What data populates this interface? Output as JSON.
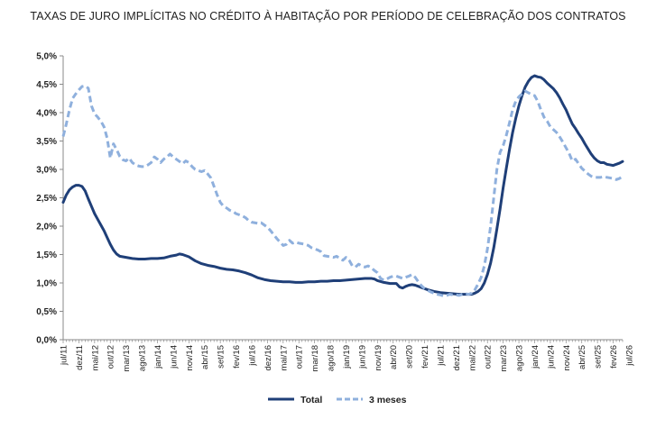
{
  "chart_data": {
    "type": "line",
    "title": "TAXAS DE JURO IMPLÍCITAS NO CRÉDITO À HABITAÇÃO POR PERÍODO DE CELEBRAÇÃO DOS CONTRATOS",
    "xlabel": "",
    "ylabel": "",
    "ylim": [
      0,
      5.0
    ],
    "yticks": [
      "0,0%",
      "0,5%",
      "1,0%",
      "1,5%",
      "2,0%",
      "2,5%",
      "3,0%",
      "3,5%",
      "4,0%",
      "4,5%",
      "5,0%"
    ],
    "xticks": [
      "jul/11",
      "dez/11",
      "mai/12",
      "out/12",
      "mar/13",
      "ago/13",
      "jan/14",
      "jun/14",
      "nov/14",
      "abr/15",
      "set/15",
      "fev/16",
      "jul/16",
      "dez/16",
      "mai/17",
      "out/17",
      "mar/18",
      "ago/18",
      "jan/19",
      "jun/19",
      "nov/19",
      "abr/20",
      "set/20",
      "fev/21",
      "jul/21",
      "dez/21",
      "mai/22",
      "out/22",
      "mar/23",
      "ago/23",
      "jan/24",
      "jun/24",
      "nov/24",
      "abr/25",
      "set/25",
      "fev/26",
      "jul/26"
    ],
    "grid": false,
    "legend_position": "bottom",
    "series": [
      {
        "name": "Total",
        "color": "#1f3f78",
        "style": "solid",
        "points": [
          [
            0,
            2.42
          ],
          [
            1,
            2.55
          ],
          [
            2,
            2.64
          ],
          [
            3,
            2.69
          ],
          [
            4,
            2.72
          ],
          [
            5,
            2.72
          ],
          [
            6,
            2.7
          ],
          [
            7,
            2.62
          ],
          [
            8,
            2.48
          ],
          [
            9,
            2.35
          ],
          [
            10,
            2.22
          ],
          [
            11,
            2.12
          ],
          [
            12,
            2.02
          ],
          [
            13,
            1.92
          ],
          [
            14,
            1.8
          ],
          [
            15,
            1.68
          ],
          [
            16,
            1.58
          ],
          [
            17,
            1.51
          ],
          [
            18,
            1.47
          ],
          [
            19,
            1.46
          ],
          [
            20,
            1.45
          ],
          [
            22,
            1.43
          ],
          [
            24,
            1.42
          ],
          [
            26,
            1.42
          ],
          [
            28,
            1.43
          ],
          [
            30,
            1.43
          ],
          [
            32,
            1.44
          ],
          [
            34,
            1.47
          ],
          [
            36,
            1.49
          ],
          [
            37,
            1.51
          ],
          [
            38,
            1.5
          ],
          [
            40,
            1.46
          ],
          [
            42,
            1.39
          ],
          [
            44,
            1.34
          ],
          [
            46,
            1.31
          ],
          [
            48,
            1.29
          ],
          [
            50,
            1.26
          ],
          [
            52,
            1.24
          ],
          [
            54,
            1.23
          ],
          [
            56,
            1.21
          ],
          [
            58,
            1.18
          ],
          [
            60,
            1.14
          ],
          [
            62,
            1.09
          ],
          [
            64,
            1.06
          ],
          [
            66,
            1.04
          ],
          [
            68,
            1.03
          ],
          [
            70,
            1.02
          ],
          [
            72,
            1.02
          ],
          [
            74,
            1.01
          ],
          [
            76,
            1.01
          ],
          [
            78,
            1.02
          ],
          [
            80,
            1.02
          ],
          [
            82,
            1.03
          ],
          [
            84,
            1.03
          ],
          [
            86,
            1.04
          ],
          [
            88,
            1.04
          ],
          [
            90,
            1.05
          ],
          [
            92,
            1.06
          ],
          [
            94,
            1.07
          ],
          [
            96,
            1.08
          ],
          [
            98,
            1.08
          ],
          [
            99,
            1.07
          ],
          [
            100,
            1.04
          ],
          [
            102,
            1.01
          ],
          [
            104,
            0.99
          ],
          [
            106,
            0.99
          ],
          [
            107,
            0.93
          ],
          [
            108,
            0.91
          ],
          [
            109,
            0.94
          ],
          [
            110,
            0.96
          ],
          [
            111,
            0.97
          ],
          [
            112,
            0.96
          ],
          [
            114,
            0.92
          ],
          [
            116,
            0.88
          ],
          [
            118,
            0.85
          ],
          [
            120,
            0.83
          ],
          [
            122,
            0.82
          ],
          [
            124,
            0.81
          ],
          [
            126,
            0.8
          ],
          [
            128,
            0.8
          ],
          [
            130,
            0.8
          ],
          [
            131,
            0.82
          ],
          [
            132,
            0.85
          ],
          [
            133,
            0.9
          ],
          [
            134,
            1.0
          ],
          [
            135,
            1.15
          ],
          [
            136,
            1.35
          ],
          [
            137,
            1.62
          ],
          [
            138,
            1.95
          ],
          [
            139,
            2.3
          ],
          [
            140,
            2.68
          ],
          [
            141,
            3.02
          ],
          [
            142,
            3.35
          ],
          [
            143,
            3.65
          ],
          [
            144,
            3.9
          ],
          [
            145,
            4.12
          ],
          [
            146,
            4.3
          ],
          [
            147,
            4.45
          ],
          [
            148,
            4.55
          ],
          [
            149,
            4.62
          ],
          [
            150,
            4.65
          ],
          [
            151,
            4.63
          ],
          [
            152,
            4.62
          ],
          [
            153,
            4.58
          ],
          [
            154,
            4.52
          ],
          [
            155,
            4.47
          ],
          [
            156,
            4.42
          ],
          [
            157,
            4.35
          ],
          [
            158,
            4.26
          ],
          [
            159,
            4.15
          ],
          [
            160,
            4.05
          ],
          [
            161,
            3.92
          ],
          [
            162,
            3.8
          ],
          [
            163,
            3.72
          ],
          [
            164,
            3.63
          ],
          [
            165,
            3.55
          ],
          [
            166,
            3.45
          ],
          [
            167,
            3.36
          ],
          [
            168,
            3.27
          ],
          [
            169,
            3.2
          ],
          [
            170,
            3.15
          ],
          [
            171,
            3.12
          ],
          [
            172,
            3.12
          ],
          [
            173,
            3.09
          ],
          [
            174,
            3.08
          ],
          [
            175,
            3.07
          ],
          [
            176,
            3.09
          ],
          [
            177,
            3.11
          ],
          [
            178,
            3.14
          ]
        ]
      },
      {
        "name": "3 meses",
        "color": "#8fb0dd",
        "style": "dashed",
        "points": [
          [
            0,
            3.58
          ],
          [
            1,
            3.8
          ],
          [
            2,
            4.05
          ],
          [
            3,
            4.25
          ],
          [
            4,
            4.33
          ],
          [
            5,
            4.4
          ],
          [
            6,
            4.46
          ],
          [
            7,
            4.47
          ],
          [
            8,
            4.43
          ],
          [
            9,
            4.12
          ],
          [
            10,
            3.98
          ],
          [
            11,
            3.92
          ],
          [
            12,
            3.85
          ],
          [
            13,
            3.75
          ],
          [
            14,
            3.55
          ],
          [
            15,
            3.2
          ],
          [
            16,
            3.45
          ],
          [
            17,
            3.35
          ],
          [
            18,
            3.23
          ],
          [
            19,
            3.17
          ],
          [
            20,
            3.15
          ],
          [
            21,
            3.2
          ],
          [
            22,
            3.12
          ],
          [
            23,
            3.08
          ],
          [
            24,
            3.06
          ],
          [
            25,
            3.05
          ],
          [
            26,
            3.05
          ],
          [
            27,
            3.08
          ],
          [
            28,
            3.12
          ],
          [
            29,
            3.22
          ],
          [
            30,
            3.18
          ],
          [
            31,
            3.12
          ],
          [
            32,
            3.18
          ],
          [
            33,
            3.22
          ],
          [
            34,
            3.27
          ],
          [
            35,
            3.22
          ],
          [
            36,
            3.18
          ],
          [
            37,
            3.14
          ],
          [
            38,
            3.1
          ],
          [
            39,
            3.15
          ],
          [
            40,
            3.12
          ],
          [
            41,
            3.05
          ],
          [
            42,
            3.0
          ],
          [
            43,
            2.98
          ],
          [
            44,
            2.96
          ],
          [
            45,
            2.98
          ],
          [
            46,
            2.92
          ],
          [
            47,
            2.85
          ],
          [
            48,
            2.7
          ],
          [
            49,
            2.55
          ],
          [
            50,
            2.42
          ],
          [
            51,
            2.35
          ],
          [
            52,
            2.32
          ],
          [
            53,
            2.28
          ],
          [
            54,
            2.26
          ],
          [
            55,
            2.22
          ],
          [
            56,
            2.2
          ],
          [
            57,
            2.18
          ],
          [
            58,
            2.15
          ],
          [
            59,
            2.1
          ],
          [
            60,
            2.07
          ],
          [
            61,
            2.06
          ],
          [
            62,
            2.05
          ],
          [
            63,
            2.06
          ],
          [
            64,
            2.02
          ],
          [
            65,
            1.98
          ],
          [
            66,
            1.92
          ],
          [
            67,
            1.85
          ],
          [
            68,
            1.78
          ],
          [
            69,
            1.72
          ],
          [
            70,
            1.66
          ],
          [
            71,
            1.68
          ],
          [
            72,
            1.75
          ],
          [
            73,
            1.7
          ],
          [
            74,
            1.72
          ],
          [
            75,
            1.7
          ],
          [
            76,
            1.69
          ],
          [
            77,
            1.68
          ],
          [
            78,
            1.66
          ],
          [
            79,
            1.62
          ],
          [
            80,
            1.6
          ],
          [
            81,
            1.58
          ],
          [
            82,
            1.55
          ],
          [
            83,
            1.48
          ],
          [
            84,
            1.47
          ],
          [
            85,
            1.46
          ],
          [
            86,
            1.45
          ],
          [
            87,
            1.47
          ],
          [
            88,
            1.43
          ],
          [
            89,
            1.4
          ],
          [
            90,
            1.45
          ],
          [
            91,
            1.4
          ],
          [
            92,
            1.3
          ],
          [
            93,
            1.28
          ],
          [
            94,
            1.33
          ],
          [
            95,
            1.3
          ],
          [
            96,
            1.28
          ],
          [
            97,
            1.3
          ],
          [
            98,
            1.27
          ],
          [
            99,
            1.22
          ],
          [
            100,
            1.18
          ],
          [
            101,
            1.08
          ],
          [
            102,
            1.05
          ],
          [
            103,
            1.07
          ],
          [
            104,
            1.1
          ],
          [
            105,
            1.12
          ],
          [
            106,
            1.12
          ],
          [
            107,
            1.1
          ],
          [
            108,
            1.08
          ],
          [
            109,
            1.1
          ],
          [
            110,
            1.12
          ],
          [
            111,
            1.15
          ],
          [
            112,
            1.1
          ],
          [
            113,
            1.02
          ],
          [
            114,
            0.95
          ],
          [
            115,
            0.9
          ],
          [
            116,
            0.87
          ],
          [
            117,
            0.84
          ],
          [
            118,
            0.82
          ],
          [
            119,
            0.8
          ],
          [
            120,
            0.79
          ],
          [
            121,
            0.77
          ],
          [
            122,
            0.78
          ],
          [
            123,
            0.8
          ],
          [
            124,
            0.79
          ],
          [
            125,
            0.79
          ],
          [
            126,
            0.78
          ],
          [
            127,
            0.8
          ],
          [
            128,
            0.81
          ],
          [
            129,
            0.8
          ],
          [
            130,
            0.82
          ],
          [
            131,
            0.88
          ],
          [
            132,
            0.98
          ],
          [
            133,
            1.1
          ],
          [
            134,
            1.3
          ],
          [
            135,
            1.6
          ],
          [
            136,
            2.0
          ],
          [
            137,
            2.5
          ],
          [
            138,
            3.0
          ],
          [
            139,
            3.3
          ],
          [
            140,
            3.42
          ],
          [
            141,
            3.6
          ],
          [
            142,
            3.82
          ],
          [
            143,
            4.05
          ],
          [
            144,
            4.2
          ],
          [
            145,
            4.28
          ],
          [
            146,
            4.33
          ],
          [
            147,
            4.38
          ],
          [
            148,
            4.35
          ],
          [
            149,
            4.32
          ],
          [
            150,
            4.3
          ],
          [
            151,
            4.2
          ],
          [
            152,
            4.05
          ],
          [
            153,
            3.92
          ],
          [
            154,
            3.85
          ],
          [
            155,
            3.75
          ],
          [
            156,
            3.7
          ],
          [
            157,
            3.65
          ],
          [
            158,
            3.57
          ],
          [
            159,
            3.48
          ],
          [
            160,
            3.38
          ],
          [
            161,
            3.28
          ],
          [
            162,
            3.15
          ],
          [
            163,
            3.18
          ],
          [
            164,
            3.1
          ],
          [
            165,
            3.02
          ],
          [
            166,
            2.97
          ],
          [
            167,
            2.92
          ],
          [
            168,
            2.88
          ],
          [
            169,
            2.86
          ],
          [
            170,
            2.86
          ],
          [
            171,
            2.86
          ],
          [
            172,
            2.87
          ],
          [
            173,
            2.86
          ],
          [
            174,
            2.85
          ],
          [
            175,
            2.84
          ],
          [
            176,
            2.82
          ],
          [
            177,
            2.84
          ],
          [
            178,
            2.88
          ]
        ]
      }
    ]
  }
}
